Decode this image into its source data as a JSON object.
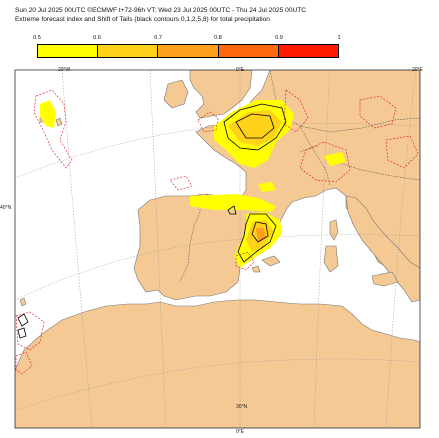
{
  "header": {
    "line1": "Sun 20 Jul 2025 00UTC ©ECMWF t+72-96h  VT: Wed 23 Jul 2025 00UTC - Thu 24 Jul 2025 00UTC",
    "line2": "Extreme forecast index and Shift of Tails (black contours 0,1,2,5,8) for total precipitation"
  },
  "colorbar": {
    "ticks": [
      "0.5",
      "0.6",
      "0.7",
      "0.8",
      "0.9",
      "1"
    ],
    "colors": [
      "#ffff00",
      "#ffd21a",
      "#ffa01f",
      "#ff6a10",
      "#ff1a00"
    ]
  },
  "colors": {
    "land": "#f5c994",
    "sea": "#ffffff",
    "coast": "#777777",
    "border": "#555555",
    "grid": "#9a9a9a",
    "sot_contour": "#000000",
    "dashed_contour": "#e0101a"
  },
  "grid_labels": {
    "top_20w": "20°W",
    "top_0": "0°E",
    "top_20e": "20°E",
    "left_40n": "40°N",
    "bottom_30n": "30°N",
    "bottom_0": "0°E"
  }
}
